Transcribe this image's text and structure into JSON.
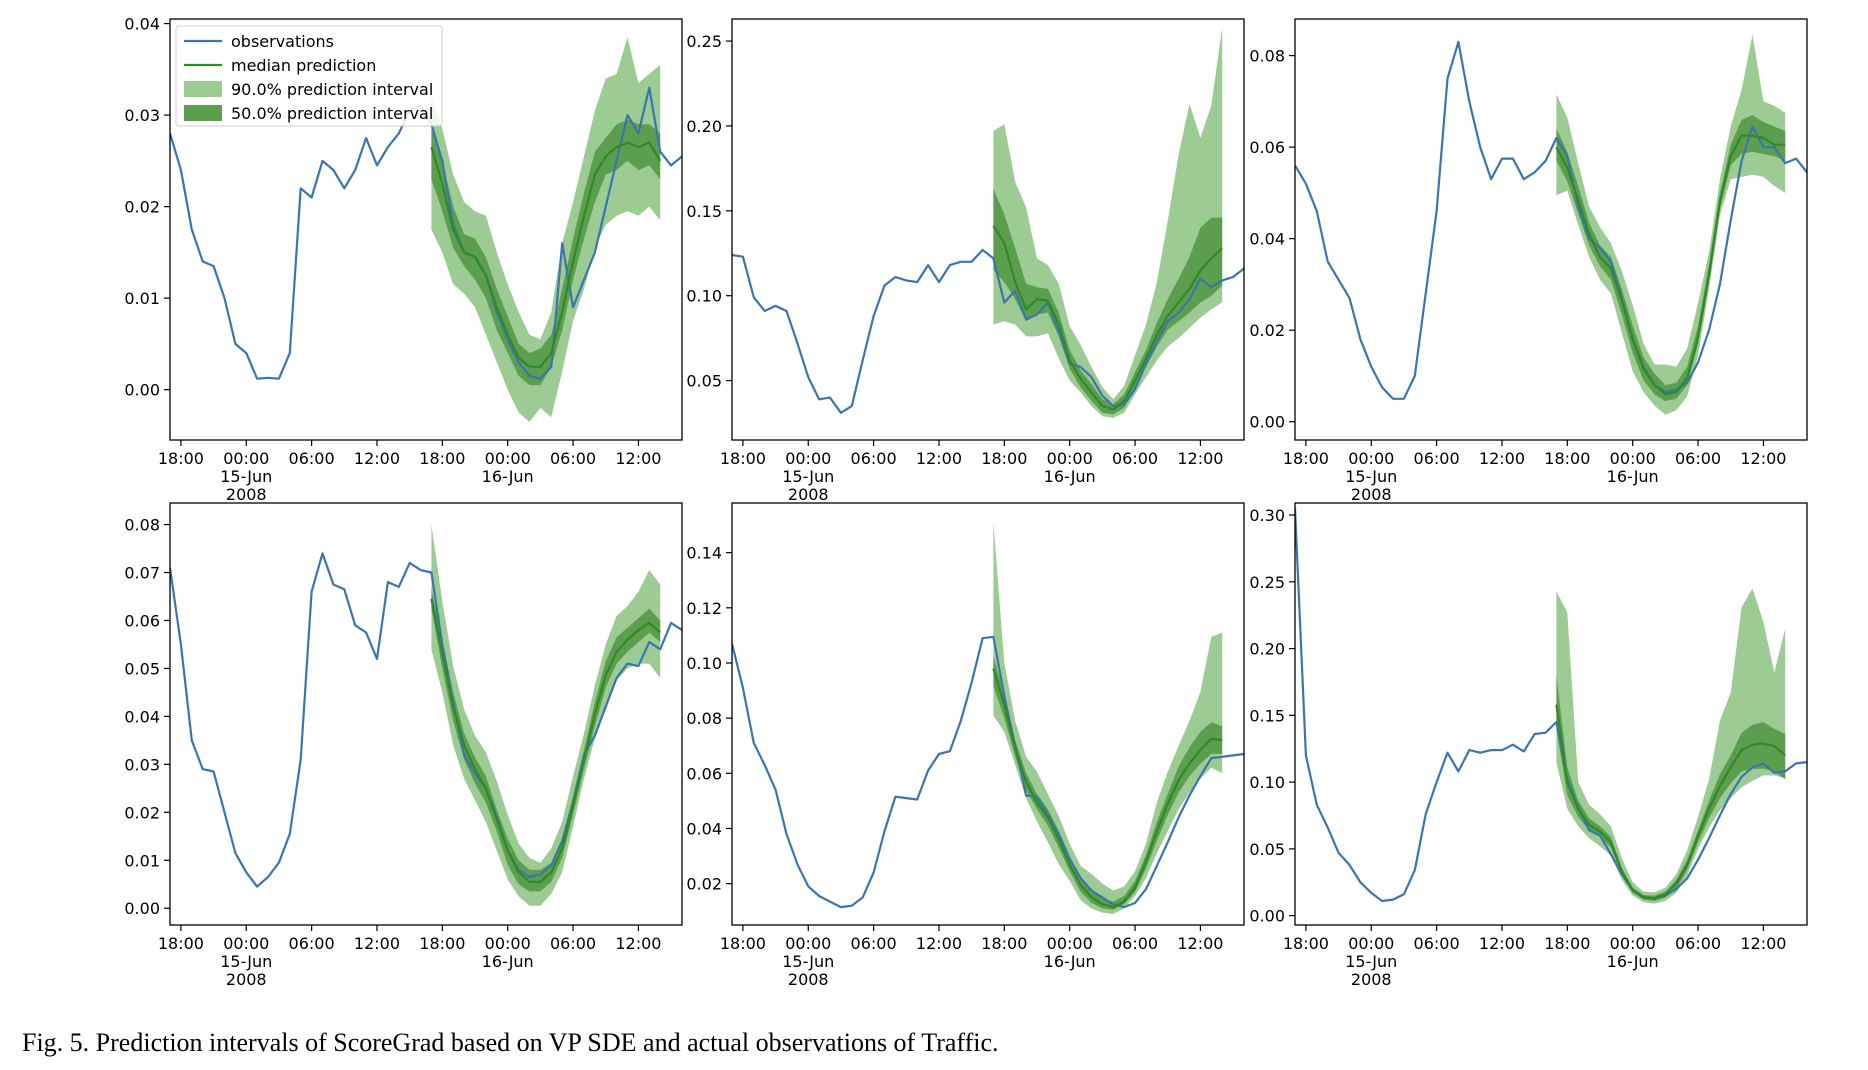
{
  "caption": "Fig. 5.  Prediction intervals of ScoreGrad based on VP SDE and actual observations of Traffic.",
  "colors": {
    "observations": "#3a75b0",
    "median": "#2f8a25",
    "interval90": "#9ccb94",
    "interval50": "#5b9f4e"
  },
  "legend": {
    "placement": "top-left",
    "items": [
      {
        "label": "observations",
        "kind": "line",
        "color": "#3a75b0"
      },
      {
        "label": "median prediction",
        "kind": "line",
        "color": "#2f8a25"
      },
      {
        "label": "90.0% prediction interval",
        "kind": "patch",
        "color": "#9ccb94"
      },
      {
        "label": "50.0% prediction interval",
        "kind": "patch",
        "color": "#5b9f4e"
      }
    ]
  },
  "x_ticks": [
    {
      "t": 1,
      "lines": [
        "18:00"
      ]
    },
    {
      "t": 7,
      "lines": [
        "00:00",
        "15-Jun",
        "2008"
      ]
    },
    {
      "t": 13,
      "lines": [
        "06:00"
      ]
    },
    {
      "t": 19,
      "lines": [
        "12:00"
      ]
    },
    {
      "t": 25,
      "lines": [
        "18:00"
      ]
    },
    {
      "t": 31,
      "lines": [
        "00:00",
        "16-Jun"
      ]
    },
    {
      "t": 37,
      "lines": [
        "06:00"
      ]
    },
    {
      "t": 43,
      "lines": [
        "12:00"
      ]
    }
  ],
  "chart_data": [
    {
      "type": "line",
      "x_range": [
        0,
        47
      ],
      "forecast_start": 24,
      "ylim": [
        -0.0055,
        0.0405
      ],
      "yticks": [
        0.0,
        0.01,
        0.02,
        0.03,
        0.04
      ],
      "ytick_labels": [
        "0.00",
        "0.01",
        "0.02",
        "0.03",
        "0.04"
      ],
      "show_legend": true,
      "observations": [
        0.028,
        0.024,
        0.0175,
        0.014,
        0.0135,
        0.01,
        0.005,
        0.004,
        0.0012,
        0.0013,
        0.0012,
        0.004,
        0.022,
        0.021,
        0.025,
        0.024,
        0.022,
        0.024,
        0.0275,
        0.0245,
        0.0265,
        0.028,
        0.0305,
        0.031,
        0.029,
        0.025,
        0.018,
        0.015,
        0.0145,
        0.0125,
        0.0085,
        0.0055,
        0.003,
        0.0015,
        0.0012,
        0.0025,
        0.016,
        0.009,
        0.012,
        0.015,
        0.02,
        0.025,
        0.03,
        0.028,
        0.033,
        0.026,
        0.0245,
        0.0255
      ],
      "median": [
        0.0265,
        0.0225,
        0.0175,
        0.015,
        0.0145,
        0.0125,
        0.009,
        0.006,
        0.0035,
        0.0025,
        0.0025,
        0.004,
        0.0085,
        0.014,
        0.019,
        0.0235,
        0.0255,
        0.0265,
        0.027,
        0.0265,
        0.027,
        0.025
      ],
      "p50_low": [
        0.023,
        0.0195,
        0.0155,
        0.0135,
        0.012,
        0.01,
        0.0065,
        0.004,
        0.0015,
        0.0005,
        0.0005,
        0.0025,
        0.0065,
        0.012,
        0.0165,
        0.0205,
        0.0235,
        0.024,
        0.025,
        0.024,
        0.0245,
        0.023
      ],
      "p50_high": [
        0.0285,
        0.025,
        0.02,
        0.017,
        0.0165,
        0.0145,
        0.011,
        0.008,
        0.005,
        0.004,
        0.0045,
        0.006,
        0.011,
        0.0165,
        0.0215,
        0.026,
        0.0275,
        0.029,
        0.0295,
        0.029,
        0.029,
        0.028
      ],
      "p90_low": [
        0.0175,
        0.015,
        0.0115,
        0.0105,
        0.009,
        0.006,
        0.003,
        0.0,
        -0.0025,
        -0.0035,
        -0.002,
        -0.003,
        0.002,
        0.0075,
        0.011,
        0.0155,
        0.018,
        0.019,
        0.0195,
        0.019,
        0.02,
        0.0185
      ],
      "p90_high": [
        0.032,
        0.0285,
        0.0235,
        0.0205,
        0.0195,
        0.019,
        0.015,
        0.0115,
        0.0085,
        0.006,
        0.0055,
        0.0085,
        0.016,
        0.0205,
        0.0255,
        0.0305,
        0.034,
        0.0345,
        0.0385,
        0.0335,
        0.0345,
        0.0355
      ]
    },
    {
      "type": "line",
      "x_range": [
        0,
        47
      ],
      "forecast_start": 24,
      "ylim": [
        0.015,
        0.263
      ],
      "yticks": [
        0.05,
        0.1,
        0.15,
        0.2,
        0.25
      ],
      "ytick_labels": [
        "0.05",
        "0.10",
        "0.15",
        "0.20",
        "0.25"
      ],
      "show_legend": false,
      "observations": [
        0.124,
        0.123,
        0.099,
        0.091,
        0.094,
        0.091,
        0.072,
        0.052,
        0.039,
        0.04,
        0.031,
        0.035,
        0.062,
        0.088,
        0.106,
        0.111,
        0.109,
        0.108,
        0.118,
        0.108,
        0.118,
        0.12,
        0.12,
        0.127,
        0.122,
        0.096,
        0.103,
        0.086,
        0.089,
        0.096,
        0.079,
        0.06,
        0.058,
        0.052,
        0.041,
        0.035,
        0.036,
        0.045,
        0.06,
        0.073,
        0.085,
        0.09,
        0.098,
        0.11,
        0.105,
        0.109,
        0.111,
        0.116
      ],
      "median": [
        0.141,
        0.131,
        0.108,
        0.092,
        0.098,
        0.097,
        0.083,
        0.062,
        0.051,
        0.043,
        0.035,
        0.033,
        0.038,
        0.05,
        0.063,
        0.077,
        0.088,
        0.096,
        0.104,
        0.115,
        0.122,
        0.128
      ],
      "p50_low": [
        0.115,
        0.108,
        0.098,
        0.085,
        0.089,
        0.09,
        0.076,
        0.057,
        0.046,
        0.038,
        0.031,
        0.03,
        0.034,
        0.046,
        0.058,
        0.07,
        0.08,
        0.085,
        0.09,
        0.096,
        0.1,
        0.106
      ],
      "p50_high": [
        0.163,
        0.148,
        0.128,
        0.107,
        0.105,
        0.104,
        0.09,
        0.068,
        0.056,
        0.048,
        0.039,
        0.036,
        0.042,
        0.055,
        0.068,
        0.084,
        0.098,
        0.11,
        0.123,
        0.14,
        0.146,
        0.146
      ],
      "p90_low": [
        0.083,
        0.085,
        0.083,
        0.076,
        0.076,
        0.078,
        0.063,
        0.05,
        0.043,
        0.035,
        0.029,
        0.028,
        0.031,
        0.042,
        0.052,
        0.062,
        0.07,
        0.075,
        0.081,
        0.087,
        0.092,
        0.096
      ],
      "p90_high": [
        0.197,
        0.201,
        0.167,
        0.152,
        0.122,
        0.118,
        0.107,
        0.082,
        0.071,
        0.058,
        0.046,
        0.039,
        0.047,
        0.065,
        0.083,
        0.108,
        0.144,
        0.183,
        0.213,
        0.193,
        0.212,
        0.258
      ]
    },
    {
      "type": "line",
      "x_range": [
        0,
        47
      ],
      "forecast_start": 24,
      "ylim": [
        -0.004,
        0.088
      ],
      "yticks": [
        0.0,
        0.02,
        0.04,
        0.06,
        0.08
      ],
      "ytick_labels": [
        "0.00",
        "0.02",
        "0.04",
        "0.06",
        "0.08"
      ],
      "show_legend": false,
      "observations": [
        0.056,
        0.052,
        0.046,
        0.035,
        0.031,
        0.027,
        0.018,
        0.012,
        0.0075,
        0.005,
        0.005,
        0.01,
        0.028,
        0.046,
        0.075,
        0.083,
        0.07,
        0.06,
        0.053,
        0.0575,
        0.0575,
        0.053,
        0.0545,
        0.057,
        0.062,
        0.058,
        0.047,
        0.04,
        0.038,
        0.035,
        0.027,
        0.018,
        0.012,
        0.008,
        0.0065,
        0.007,
        0.0085,
        0.013,
        0.02,
        0.03,
        0.044,
        0.057,
        0.0645,
        0.06,
        0.06,
        0.0565,
        0.0575,
        0.0545
      ],
      "median": [
        0.06,
        0.0555,
        0.0485,
        0.041,
        0.036,
        0.0335,
        0.0265,
        0.018,
        0.0115,
        0.008,
        0.006,
        0.0065,
        0.0095,
        0.0185,
        0.032,
        0.048,
        0.058,
        0.0625,
        0.0625,
        0.062,
        0.0605,
        0.0605
      ],
      "p50_low": [
        0.057,
        0.0525,
        0.0455,
        0.0385,
        0.034,
        0.031,
        0.0235,
        0.015,
        0.009,
        0.006,
        0.0045,
        0.005,
        0.008,
        0.017,
        0.0305,
        0.0465,
        0.056,
        0.0585,
        0.059,
        0.0585,
        0.058,
        0.057
      ],
      "p50_high": [
        0.064,
        0.059,
        0.0515,
        0.0435,
        0.0385,
        0.036,
        0.029,
        0.021,
        0.014,
        0.0105,
        0.008,
        0.0085,
        0.012,
        0.021,
        0.0345,
        0.05,
        0.0605,
        0.066,
        0.067,
        0.0655,
        0.0645,
        0.0635
      ],
      "p90_low": [
        0.0495,
        0.0505,
        0.043,
        0.036,
        0.031,
        0.028,
        0.0195,
        0.011,
        0.0065,
        0.0035,
        0.0015,
        0.0025,
        0.0055,
        0.0145,
        0.029,
        0.045,
        0.053,
        0.0535,
        0.054,
        0.0535,
        0.0515,
        0.05
      ],
      "p90_high": [
        0.0715,
        0.0665,
        0.0565,
        0.047,
        0.0425,
        0.039,
        0.033,
        0.0255,
        0.017,
        0.0125,
        0.0125,
        0.012,
        0.016,
        0.026,
        0.037,
        0.053,
        0.0645,
        0.0725,
        0.0845,
        0.07,
        0.069,
        0.0675
      ]
    },
    {
      "type": "line",
      "x_range": [
        0,
        47
      ],
      "forecast_start": 24,
      "ylim": [
        -0.0035,
        0.0845
      ],
      "yticks": [
        0.0,
        0.01,
        0.02,
        0.03,
        0.04,
        0.05,
        0.06,
        0.07,
        0.08
      ],
      "ytick_labels": [
        "0.00",
        "0.01",
        "0.02",
        "0.03",
        "0.04",
        "0.05",
        "0.06",
        "0.07",
        "0.08"
      ],
      "show_legend": false,
      "observations": [
        0.071,
        0.055,
        0.035,
        0.029,
        0.0285,
        0.02,
        0.0115,
        0.0075,
        0.0045,
        0.0065,
        0.0095,
        0.0155,
        0.031,
        0.066,
        0.074,
        0.0675,
        0.0665,
        0.059,
        0.0575,
        0.052,
        0.068,
        0.067,
        0.072,
        0.0705,
        0.07,
        0.055,
        0.043,
        0.032,
        0.028,
        0.025,
        0.019,
        0.012,
        0.008,
        0.0065,
        0.007,
        0.009,
        0.014,
        0.022,
        0.032,
        0.036,
        0.042,
        0.048,
        0.051,
        0.0505,
        0.0555,
        0.054,
        0.0595,
        0.058
      ],
      "median": [
        0.0645,
        0.053,
        0.042,
        0.034,
        0.029,
        0.025,
        0.0185,
        0.012,
        0.0075,
        0.0055,
        0.0055,
        0.0075,
        0.0125,
        0.0215,
        0.031,
        0.0405,
        0.0485,
        0.0535,
        0.056,
        0.058,
        0.0595,
        0.0575
      ],
      "p50_low": [
        0.0625,
        0.05,
        0.039,
        0.031,
        0.026,
        0.022,
        0.016,
        0.009,
        0.005,
        0.0035,
        0.0035,
        0.0055,
        0.0105,
        0.0195,
        0.029,
        0.038,
        0.046,
        0.051,
        0.0535,
        0.0555,
        0.0575,
        0.0555
      ],
      "p50_high": [
        0.0665,
        0.056,
        0.045,
        0.0365,
        0.0315,
        0.0275,
        0.0205,
        0.0145,
        0.01,
        0.008,
        0.008,
        0.0095,
        0.0145,
        0.0235,
        0.033,
        0.043,
        0.0515,
        0.0565,
        0.0585,
        0.0605,
        0.0625,
        0.06
      ],
      "p90_low": [
        0.054,
        0.045,
        0.034,
        0.027,
        0.0225,
        0.018,
        0.012,
        0.006,
        0.0025,
        0.0005,
        0.0005,
        0.003,
        0.0075,
        0.017,
        0.027,
        0.0355,
        0.0425,
        0.0475,
        0.05,
        0.051,
        0.051,
        0.048
      ],
      "p90_high": [
        0.08,
        0.064,
        0.0505,
        0.0415,
        0.036,
        0.0325,
        0.0265,
        0.0195,
        0.0135,
        0.0105,
        0.0095,
        0.0125,
        0.018,
        0.0275,
        0.0365,
        0.0465,
        0.055,
        0.061,
        0.063,
        0.066,
        0.0705,
        0.0675
      ]
    },
    {
      "type": "line",
      "x_range": [
        0,
        47
      ],
      "forecast_start": 24,
      "ylim": [
        0.005,
        0.158
      ],
      "yticks": [
        0.02,
        0.04,
        0.06,
        0.08,
        0.1,
        0.12,
        0.14
      ],
      "ytick_labels": [
        "0.02",
        "0.04",
        "0.06",
        "0.08",
        "0.10",
        "0.12",
        "0.14"
      ],
      "show_legend": false,
      "observations": [
        0.107,
        0.091,
        0.071,
        0.063,
        0.054,
        0.038,
        0.027,
        0.019,
        0.0155,
        0.0135,
        0.0115,
        0.012,
        0.015,
        0.024,
        0.039,
        0.0515,
        0.051,
        0.0505,
        0.061,
        0.067,
        0.068,
        0.079,
        0.093,
        0.109,
        0.1095,
        0.088,
        0.07,
        0.052,
        0.0515,
        0.045,
        0.038,
        0.029,
        0.022,
        0.0175,
        0.015,
        0.0125,
        0.0115,
        0.013,
        0.018,
        0.0265,
        0.035,
        0.044,
        0.052,
        0.059,
        0.0655,
        0.066,
        0.0665,
        0.067
      ],
      "median": [
        0.098,
        0.085,
        0.069,
        0.057,
        0.0495,
        0.044,
        0.036,
        0.027,
        0.0195,
        0.015,
        0.0125,
        0.0115,
        0.0135,
        0.0185,
        0.028,
        0.039,
        0.049,
        0.0575,
        0.0635,
        0.0685,
        0.0725,
        0.072
      ],
      "p50_low": [
        0.0915,
        0.08,
        0.066,
        0.054,
        0.047,
        0.041,
        0.033,
        0.0245,
        0.017,
        0.013,
        0.011,
        0.0105,
        0.0125,
        0.017,
        0.0255,
        0.0355,
        0.045,
        0.053,
        0.059,
        0.0635,
        0.067,
        0.067
      ],
      "p50_high": [
        0.1025,
        0.0885,
        0.072,
        0.06,
        0.0525,
        0.047,
        0.039,
        0.029,
        0.022,
        0.0175,
        0.0145,
        0.0135,
        0.0155,
        0.021,
        0.0305,
        0.0425,
        0.0525,
        0.0625,
        0.0695,
        0.075,
        0.0785,
        0.077
      ],
      "p90_low": [
        0.081,
        0.075,
        0.063,
        0.051,
        0.0425,
        0.035,
        0.027,
        0.021,
        0.014,
        0.011,
        0.0095,
        0.009,
        0.011,
        0.0155,
        0.022,
        0.031,
        0.039,
        0.047,
        0.053,
        0.058,
        0.062,
        0.06
      ],
      "p90_high": [
        0.151,
        0.1,
        0.079,
        0.066,
        0.0605,
        0.0525,
        0.0445,
        0.0345,
        0.0265,
        0.0235,
        0.02,
        0.0175,
        0.019,
        0.0245,
        0.0345,
        0.0495,
        0.0605,
        0.07,
        0.079,
        0.0895,
        0.1095,
        0.111
      ]
    },
    {
      "type": "line",
      "x_range": [
        0,
        47
      ],
      "forecast_start": 24,
      "ylim": [
        -0.007,
        0.309
      ],
      "yticks": [
        0.0,
        0.05,
        0.1,
        0.15,
        0.2,
        0.25,
        0.3
      ],
      "ytick_labels": [
        "0.00",
        "0.05",
        "0.10",
        "0.15",
        "0.20",
        "0.25",
        "0.30"
      ],
      "show_legend": false,
      "observations": [
        0.305,
        0.12,
        0.083,
        0.066,
        0.047,
        0.038,
        0.025,
        0.017,
        0.011,
        0.012,
        0.016,
        0.034,
        0.076,
        0.1,
        0.122,
        0.108,
        0.124,
        0.122,
        0.124,
        0.124,
        0.128,
        0.123,
        0.136,
        0.137,
        0.145,
        0.102,
        0.081,
        0.064,
        0.06,
        0.046,
        0.031,
        0.019,
        0.014,
        0.013,
        0.015,
        0.02,
        0.028,
        0.042,
        0.058,
        0.075,
        0.091,
        0.104,
        0.111,
        0.114,
        0.107,
        0.108,
        0.114,
        0.115
      ],
      "median": [
        0.158,
        0.1,
        0.08,
        0.068,
        0.063,
        0.055,
        0.033,
        0.019,
        0.0135,
        0.013,
        0.016,
        0.024,
        0.038,
        0.06,
        0.08,
        0.097,
        0.111,
        0.124,
        0.128,
        0.129,
        0.127,
        0.12
      ],
      "p50_low": [
        0.14,
        0.09,
        0.074,
        0.064,
        0.059,
        0.051,
        0.031,
        0.017,
        0.012,
        0.011,
        0.0135,
        0.02,
        0.034,
        0.055,
        0.073,
        0.088,
        0.099,
        0.108,
        0.11,
        0.11,
        0.108,
        0.102
      ],
      "p50_high": [
        0.18,
        0.111,
        0.086,
        0.073,
        0.067,
        0.059,
        0.036,
        0.021,
        0.0155,
        0.015,
        0.018,
        0.027,
        0.042,
        0.064,
        0.086,
        0.106,
        0.12,
        0.137,
        0.143,
        0.145,
        0.14,
        0.136
      ],
      "p90_low": [
        0.115,
        0.08,
        0.067,
        0.058,
        0.052,
        0.045,
        0.027,
        0.015,
        0.01,
        0.009,
        0.011,
        0.017,
        0.03,
        0.05,
        0.066,
        0.079,
        0.088,
        0.096,
        0.101,
        0.105,
        0.105,
        0.103
      ],
      "p90_high": [
        0.243,
        0.227,
        0.1,
        0.083,
        0.076,
        0.067,
        0.043,
        0.025,
        0.018,
        0.0175,
        0.021,
        0.031,
        0.049,
        0.074,
        0.102,
        0.146,
        0.167,
        0.231,
        0.245,
        0.22,
        0.182,
        0.215
      ]
    }
  ]
}
